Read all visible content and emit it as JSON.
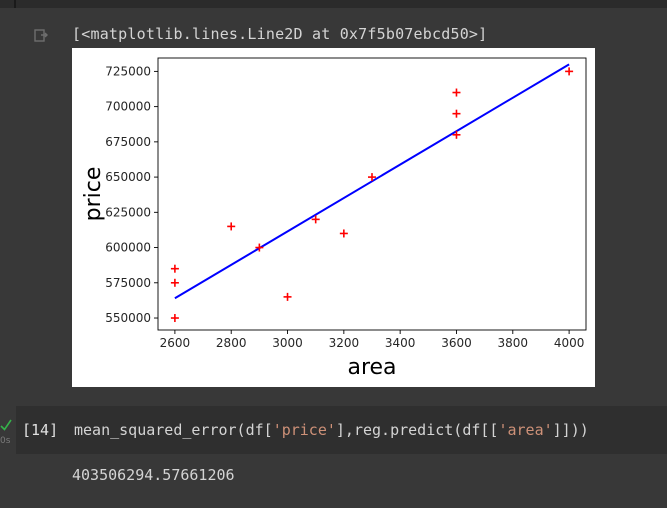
{
  "output": {
    "text": "[<matplotlib.lines.Line2D at 0x7f5b07ebcd50>]",
    "icon": "output-icon"
  },
  "chart_data": {
    "type": "scatter",
    "xlabel": "area",
    "ylabel": "price",
    "xlim": [
      2540,
      4060
    ],
    "ylim": [
      541500,
      734500
    ],
    "xticks": [
      2600,
      2800,
      3000,
      3200,
      3400,
      3600,
      3800,
      4000
    ],
    "yticks": [
      550000,
      575000,
      600000,
      625000,
      650000,
      675000,
      700000,
      725000
    ],
    "grid": false,
    "scatter": {
      "marker": "+",
      "color": "#ff0000",
      "x": [
        2600,
        2600,
        2600,
        2800,
        2900,
        3000,
        3100,
        3200,
        3300,
        3600,
        3600,
        3600,
        4000
      ],
      "y": [
        550000,
        575000,
        585000,
        615000,
        600000,
        565000,
        620000,
        610000,
        650000,
        680000,
        695000,
        710000,
        725000
      ]
    },
    "line": {
      "color": "#0000ff",
      "x": [
        2600,
        4000
      ],
      "y": [
        564000,
        730000
      ]
    }
  },
  "cell": {
    "exec_count": "[14]",
    "status_icon": "check-icon",
    "run_time": "0s",
    "code": {
      "p1": "mean_squared_error(df[",
      "s1": "'price'",
      "p2": "],reg.predict(df[[",
      "s2": "'area'",
      "p3": "]]))"
    }
  },
  "result": {
    "text": "403506294.57661206"
  }
}
